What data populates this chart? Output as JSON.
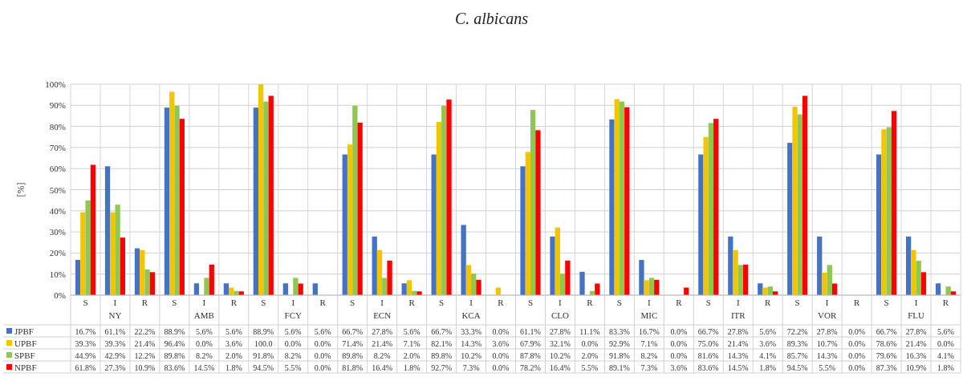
{
  "chart_data": {
    "type": "bar",
    "title": "C. albicans",
    "ylabel": "[%]",
    "categories": [
      "S",
      "I",
      "R",
      "S",
      "I",
      "R",
      "S",
      "I",
      "R",
      "S",
      "I",
      "R",
      "S",
      "I",
      "R",
      "S",
      "I",
      "R",
      "S",
      "I",
      "R",
      "S",
      "I",
      "R",
      "S",
      "I",
      "R",
      "S",
      "I",
      "R"
    ],
    "annotations": [
      "NY",
      "AMB",
      "FCY",
      "ECN",
      "KCA",
      "CLO",
      "MIC",
      "ITR",
      "VOR",
      "FLU"
    ],
    "ylim": [
      0,
      100
    ],
    "yticks": [
      {
        "value": 0,
        "label": "0%"
      },
      {
        "value": 10,
        "label": "10%"
      },
      {
        "value": 20,
        "label": "20%"
      },
      {
        "value": 30,
        "label": "30%"
      },
      {
        "value": 40,
        "label": "40%"
      },
      {
        "value": 50,
        "label": "50%"
      },
      {
        "value": 60,
        "label": "60%"
      },
      {
        "value": 70,
        "label": "70%"
      },
      {
        "value": 80,
        "label": "80%"
      },
      {
        "value": 90,
        "label": "90%"
      },
      {
        "value": 100,
        "label": "100%"
      }
    ],
    "grid": true,
    "legend": "bottom",
    "series": [
      {
        "name": "JPBF",
        "color": "#4472c4",
        "values": [
          16.7,
          61.1,
          22.2,
          88.9,
          5.6,
          5.6,
          88.9,
          5.6,
          5.6,
          66.7,
          27.8,
          5.6,
          66.7,
          33.3,
          0.0,
          61.1,
          27.8,
          11.1,
          83.3,
          16.7,
          0.0,
          66.7,
          27.8,
          5.6,
          72.2,
          27.8,
          0.0,
          66.7,
          27.8,
          5.6
        ],
        "value_labels": [
          "16.7%",
          "61.1%",
          "22.2%",
          "88.9%",
          "5.6%",
          "5.6%",
          "88.9%",
          "5.6%",
          "5.6%",
          "66.7%",
          "27.8%",
          "5.6%",
          "66.7%",
          "33.3%",
          "0.0%",
          "61.1%",
          "27.8%",
          "11.1%",
          "83.3%",
          "16.7%",
          "0.0%",
          "66.7%",
          "27.8%",
          "5.6%",
          "72.2%",
          "27.8%",
          "0.0%",
          "66.7%",
          "27.8%",
          "5.6%"
        ]
      },
      {
        "name": "UPBF",
        "color": "#f2c500",
        "values": [
          39.3,
          39.3,
          21.4,
          96.4,
          0.0,
          3.6,
          100.0,
          0.0,
          0.0,
          71.4,
          21.4,
          7.1,
          82.1,
          14.3,
          3.6,
          67.9,
          32.1,
          0.0,
          92.9,
          7.1,
          0.0,
          75.0,
          21.4,
          3.6,
          89.3,
          10.7,
          0.0,
          78.6,
          21.4,
          0.0
        ],
        "value_labels": [
          "39.3%",
          "39.3%",
          "21.4%",
          "96.4%",
          "0.0%",
          "3.6%",
          "100.0",
          "0.0%",
          "0.0%",
          "71.4%",
          "21.4%",
          "7.1%",
          "82.1%",
          "14.3%",
          "3.6%",
          "67.9%",
          "32.1%",
          "0.0%",
          "92.9%",
          "7.1%",
          "0.0%",
          "75.0%",
          "21.4%",
          "3.6%",
          "89.3%",
          "10.7%",
          "0.0%",
          "78.6%",
          "21.4%",
          "0.0%"
        ]
      },
      {
        "name": "SPBF",
        "color": "#8fc850",
        "values": [
          44.9,
          42.9,
          12.2,
          89.8,
          8.2,
          2.0,
          91.8,
          8.2,
          0.0,
          89.8,
          8.2,
          2.0,
          89.8,
          10.2,
          0.0,
          87.8,
          10.2,
          2.0,
          91.8,
          8.2,
          0.0,
          81.6,
          14.3,
          4.1,
          85.7,
          14.3,
          0.0,
          79.6,
          16.3,
          4.1
        ],
        "value_labels": [
          "44.9%",
          "42.9%",
          "12.2%",
          "89.8%",
          "8.2%",
          "2.0%",
          "91.8%",
          "8.2%",
          "0.0%",
          "89.8%",
          "8.2%",
          "2.0%",
          "89.8%",
          "10.2%",
          "0.0%",
          "87.8%",
          "10.2%",
          "2.0%",
          "91.8%",
          "8.2%",
          "0.0%",
          "81.6%",
          "14.3%",
          "4.1%",
          "85.7%",
          "14.3%",
          "0.0%",
          "79.6%",
          "16.3%",
          "4.1%"
        ]
      },
      {
        "name": "NPBF",
        "color": "#ff0000",
        "values": [
          61.8,
          27.3,
          10.9,
          83.6,
          14.5,
          1.8,
          94.5,
          5.5,
          0.0,
          81.8,
          16.4,
          1.8,
          92.7,
          7.3,
          0.0,
          78.2,
          16.4,
          5.5,
          89.1,
          7.3,
          3.6,
          83.6,
          14.5,
          1.8,
          94.5,
          5.5,
          0.0,
          87.3,
          10.9,
          1.8
        ],
        "value_labels": [
          "61.8%",
          "27.3%",
          "10.9%",
          "83.6%",
          "14.5%",
          "1.8%",
          "94.5%",
          "5.5%",
          "0.0%",
          "81.8%",
          "16.4%",
          "1.8%",
          "92.7%",
          "7.3%",
          "0.0%",
          "78.2%",
          "16.4%",
          "5.5%",
          "89.1%",
          "7.3%",
          "3.6%",
          "83.6%",
          "14.5%",
          "1.8%",
          "94.5%",
          "5.5%",
          "0.0%",
          "87.3%",
          "10.9%",
          "1.8%"
        ]
      }
    ]
  }
}
